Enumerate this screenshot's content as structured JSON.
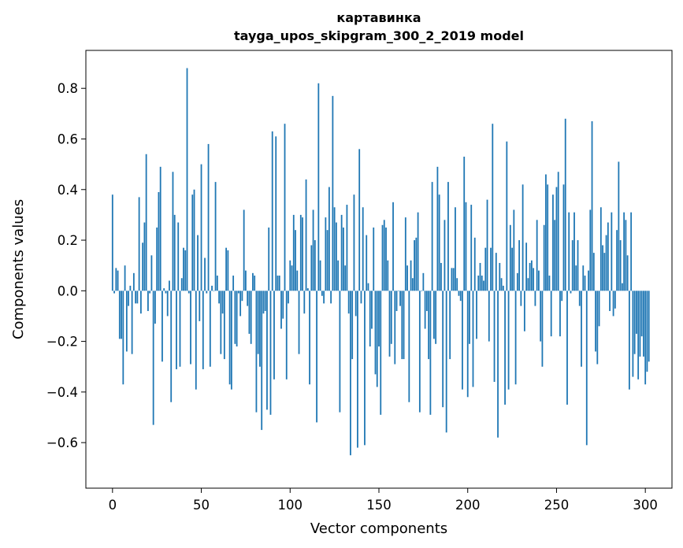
{
  "chart_data": {
    "type": "bar",
    "title": "картавинка",
    "subtitle": "tayga_upos_skipgram_300_2_2019 model",
    "xlabel": "Vector components",
    "ylabel": "Components values",
    "xlim": [
      -15,
      315
    ],
    "ylim": [
      -0.78,
      0.95
    ],
    "xticks": [
      0,
      50,
      100,
      150,
      200,
      250,
      300
    ],
    "yticks": [
      -0.6,
      -0.4,
      -0.2,
      0.0,
      0.2,
      0.4,
      0.6,
      0.8
    ],
    "xtick_labels": [
      "0",
      "50",
      "100",
      "150",
      "200",
      "250",
      "300"
    ],
    "ytick_labels": [
      "−0.6",
      "−0.4",
      "−0.2",
      "0.0",
      "0.2",
      "0.4",
      "0.6",
      "0.8"
    ],
    "grid": false,
    "bar_color": "#1f77b4",
    "values": [
      0.38,
      -0.01,
      0.09,
      0.08,
      -0.19,
      -0.19,
      -0.37,
      0.1,
      -0.24,
      -0.06,
      0.02,
      -0.25,
      0.07,
      -0.05,
      -0.05,
      0.37,
      -0.09,
      0.19,
      0.27,
      0.54,
      -0.08,
      -0.01,
      0.14,
      -0.53,
      -0.13,
      0.25,
      0.39,
      0.49,
      -0.28,
      0.01,
      -0.01,
      -0.1,
      0.04,
      -0.44,
      0.47,
      0.3,
      -0.31,
      0.27,
      -0.3,
      0.05,
      0.17,
      0.16,
      0.88,
      -0.01,
      -0.29,
      0.38,
      0.4,
      -0.39,
      0.22,
      -0.12,
      0.5,
      -0.31,
      0.13,
      -0.01,
      0.58,
      -0.3,
      0.02,
      0.0,
      0.43,
      0.06,
      -0.05,
      -0.25,
      -0.09,
      -0.27,
      0.17,
      0.16,
      -0.37,
      -0.39,
      0.06,
      -0.21,
      -0.22,
      -0.01,
      -0.1,
      -0.04,
      0.32,
      0.08,
      -0.06,
      -0.17,
      -0.21,
      0.07,
      0.06,
      -0.48,
      -0.25,
      -0.3,
      -0.55,
      -0.09,
      -0.08,
      -0.47,
      0.25,
      -0.49,
      0.63,
      -0.35,
      0.61,
      0.06,
      0.06,
      -0.15,
      -0.11,
      0.66,
      -0.35,
      -0.05,
      0.12,
      0.1,
      0.3,
      0.24,
      0.08,
      -0.25,
      0.3,
      0.29,
      -0.09,
      0.44,
      0.01,
      -0.37,
      0.18,
      0.32,
      0.2,
      -0.52,
      0.82,
      0.12,
      -0.02,
      -0.05,
      0.29,
      0.24,
      0.41,
      -0.05,
      0.77,
      0.33,
      0.27,
      0.12,
      -0.48,
      0.3,
      0.25,
      0.1,
      0.34,
      -0.09,
      -0.65,
      -0.27,
      0.38,
      -0.1,
      -0.62,
      0.56,
      -0.05,
      0.33,
      -0.61,
      0.22,
      0.03,
      -0.22,
      -0.15,
      0.25,
      -0.33,
      -0.38,
      -0.22,
      -0.49,
      0.26,
      0.28,
      0.25,
      0.12,
      -0.26,
      -0.21,
      0.35,
      -0.29,
      -0.08,
      0.0,
      -0.06,
      -0.27,
      -0.27,
      0.29,
      0.1,
      -0.44,
      0.12,
      0.05,
      0.2,
      0.21,
      0.31,
      -0.48,
      0.0,
      0.07,
      -0.15,
      -0.08,
      -0.27,
      -0.49,
      0.43,
      -0.19,
      -0.21,
      0.49,
      0.38,
      0.11,
      -0.46,
      0.28,
      -0.56,
      0.43,
      -0.27,
      0.09,
      0.09,
      0.33,
      0.05,
      -0.02,
      -0.04,
      -0.39,
      0.53,
      0.35,
      -0.42,
      -0.21,
      0.34,
      -0.38,
      0.21,
      -0.19,
      0.06,
      0.11,
      0.06,
      0.04,
      0.17,
      0.36,
      -0.2,
      0.17,
      0.66,
      -0.36,
      0.15,
      -0.58,
      0.11,
      0.05,
      0.02,
      -0.45,
      0.59,
      -0.39,
      0.26,
      0.17,
      0.32,
      -0.37,
      0.07,
      0.2,
      -0.06,
      0.42,
      -0.16,
      0.19,
      0.05,
      0.11,
      0.12,
      0.09,
      -0.06,
      0.28,
      0.08,
      -0.2,
      -0.3,
      0.26,
      0.46,
      0.42,
      0.06,
      -0.18,
      0.38,
      0.28,
      0.41,
      0.47,
      -0.18,
      -0.04,
      0.42,
      0.68,
      -0.45,
      0.31,
      -0.01,
      0.2,
      0.31,
      0.1,
      0.2,
      -0.06,
      -0.3,
      0.1,
      0.06,
      -0.61,
      0.08,
      0.32,
      0.67,
      0.15,
      -0.24,
      -0.29,
      -0.14,
      0.33,
      0.18,
      0.15,
      0.22,
      0.27,
      -0.08,
      0.31,
      -0.1,
      -0.07,
      0.24,
      0.51,
      0.2,
      0.03,
      0.31,
      0.28,
      0.14,
      -0.39,
      0.31,
      -0.34,
      -0.25,
      -0.17,
      -0.35,
      -0.26,
      -0.18,
      -0.26,
      -0.37,
      -0.32,
      -0.28
    ]
  }
}
